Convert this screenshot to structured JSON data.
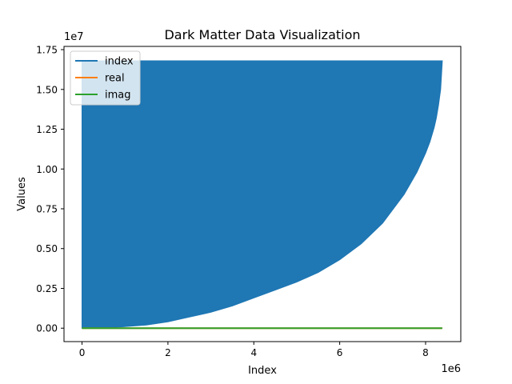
{
  "chart_data": {
    "type": "line",
    "title": "Dark Matter Data Visualization",
    "xlabel": "Index",
    "ylabel": "Values",
    "x_multiplier": "1e6",
    "y_multiplier": "1e7",
    "xlim": [
      -0.42,
      8.82
    ],
    "ylim": [
      -0.0843,
      1.7703
    ],
    "x_ticks": [
      0,
      2,
      4,
      6,
      8
    ],
    "x_tick_labels": [
      "0",
      "2",
      "4",
      "6",
      "8"
    ],
    "y_ticks": [
      0,
      0.25,
      0.5,
      0.75,
      1.0,
      1.25,
      1.5,
      1.75
    ],
    "y_tick_labels": [
      "0.00",
      "0.25",
      "0.50",
      "0.75",
      "1.00",
      "1.25",
      "1.50",
      "1.75"
    ],
    "grid": false,
    "legend_position": "top-left",
    "series": [
      {
        "name": "index",
        "color": "#1f77b4",
        "render": "envelope",
        "x": [
          0,
          0.5,
          1,
          1.5,
          2,
          2.5,
          3,
          3.5,
          4,
          4.5,
          5,
          5.5,
          6,
          6.5,
          7,
          7.5,
          7.8,
          8.0,
          8.1,
          8.2,
          8.25,
          8.3,
          8.35,
          8.39
        ],
        "y_min": [
          0,
          0.0,
          0.01,
          0.02,
          0.04,
          0.07,
          0.1,
          0.14,
          0.19,
          0.24,
          0.29,
          0.35,
          0.43,
          0.53,
          0.66,
          0.84,
          0.98,
          1.1,
          1.17,
          1.26,
          1.32,
          1.4,
          1.5,
          1.68
        ],
        "y_max": 1.68
      },
      {
        "name": "real",
        "color": "#ff7f0e",
        "render": "line",
        "x": [
          0,
          8.39
        ],
        "y": [
          0,
          0
        ]
      },
      {
        "name": "imag",
        "color": "#2ca02c",
        "render": "line",
        "x": [
          0,
          8.39
        ],
        "y": [
          0,
          0
        ]
      }
    ]
  }
}
